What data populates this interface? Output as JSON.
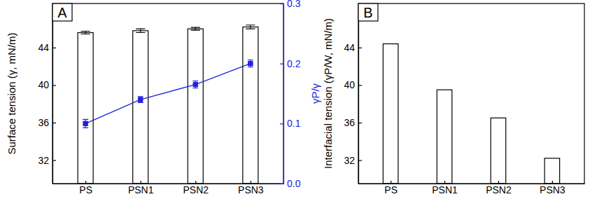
{
  "chart_data": [
    {
      "type": "bar",
      "title": "A",
      "categories": [
        "PS",
        "PSN1",
        "PSN2",
        "PSN3"
      ],
      "ylabel": "Surface tension (γ, mN/m)",
      "y2label": "γP/γ",
      "ylim": [
        29.5,
        48.7
      ],
      "yticks": [
        32,
        36,
        40,
        44
      ],
      "y2lim": [
        0,
        0.3
      ],
      "y2ticks": [
        {
          "value": 0,
          "label": "0.0"
        },
        {
          "value": 0.1,
          "label": "0.1"
        },
        {
          "value": 0.2,
          "label": "0.2"
        },
        {
          "value": 0.3,
          "label": "0.3"
        }
      ],
      "series": [
        {
          "type": "bar",
          "color": "#ffffff",
          "values": [
            45.6,
            45.8,
            46.0,
            46.2
          ],
          "errors": [
            0.15,
            0.2,
            0.15,
            0.2
          ]
        },
        {
          "type": "line",
          "axis": "y2",
          "color": "#2222dd",
          "marker": "square",
          "values": [
            0.1,
            0.14,
            0.165,
            0.2
          ],
          "errors": [
            0.007,
            0.005,
            0.006,
            0.006
          ]
        }
      ]
    },
    {
      "type": "bar",
      "title": "B",
      "categories": [
        "PS",
        "PSN1",
        "PSN2",
        "PSN3"
      ],
      "ylabel": "Interfacial tension (γP/W, mN/m)",
      "ylim": [
        29.5,
        48.7
      ],
      "yticks": [
        32,
        36,
        40,
        44
      ],
      "color": "#ffffff",
      "values": [
        44.4,
        39.5,
        36.5,
        32.2
      ]
    }
  ]
}
